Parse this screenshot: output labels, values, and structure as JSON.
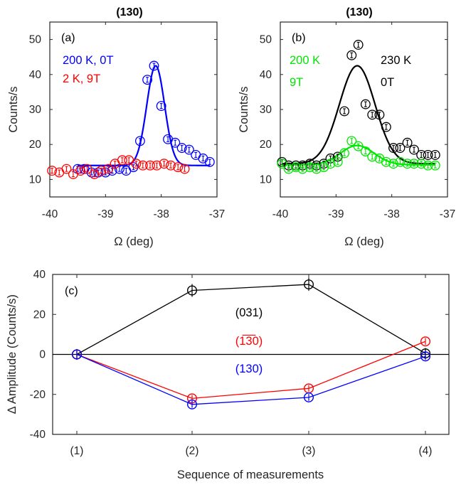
{
  "chart_data": [
    {
      "id": "a",
      "type": "scatter",
      "title": "(130)",
      "panel_label": "(a)",
      "xlabel": "Ω (deg)",
      "ylabel": "Counts/s",
      "xlim": [
        -37,
        -40
      ],
      "ylim": [
        5,
        55
      ],
      "xticks": [
        -40,
        -39,
        -38,
        -37
      ],
      "yticks": [
        10,
        20,
        30,
        40,
        50
      ],
      "legend": [
        {
          "text": "200 K, 0T",
          "color": "#0000ff"
        },
        {
          "text": "2 K, 9T",
          "color": "#ff0000"
        }
      ],
      "series": [
        {
          "name": "200 K, 0T",
          "color": "#0000ff",
          "fit": true,
          "x": [
            -39.5,
            -39.38,
            -39.25,
            -39.13,
            -39.0,
            -38.88,
            -38.75,
            -38.63,
            -38.5,
            -38.38,
            -38.25,
            -38.13,
            -38.0,
            -37.88,
            -37.75,
            -37.63,
            -37.5,
            -37.38,
            -37.25,
            -37.13
          ],
          "y": [
            13,
            13,
            12,
            12,
            12,
            12.5,
            13,
            12.5,
            13.5,
            21,
            38.5,
            42.5,
            31,
            21.5,
            20.5,
            19,
            18.5,
            17,
            16,
            15
          ]
        },
        {
          "name": "2 K, 9T",
          "color": "#ff0000",
          "fit": false,
          "x": [
            -39.96,
            -39.83,
            -39.7,
            -39.58,
            -39.45,
            -39.33,
            -39.2,
            -39.08,
            -38.95,
            -38.83,
            -38.7,
            -38.58,
            -38.45,
            -38.33,
            -38.2,
            -38.08,
            -37.95,
            -37.83,
            -37.7,
            -37.58
          ],
          "y": [
            12.5,
            12,
            13,
            11.5,
            12.5,
            13,
            11.5,
            12.5,
            13,
            14.5,
            15.5,
            15.5,
            14.5,
            14,
            14,
            14,
            14.5,
            14,
            13.5,
            13
          ]
        }
      ],
      "fit_curve": {
        "color": "#0000ff",
        "baseline": 14,
        "amplitude": 28.5,
        "center": -38.1,
        "sigma": 0.16
      }
    },
    {
      "id": "b",
      "type": "scatter",
      "title": "(130)",
      "panel_label": "(b)",
      "xlabel": "Ω (deg)",
      "ylabel": "Counts/s",
      "xlim": [
        -37,
        -40
      ],
      "ylim": [
        5,
        55
      ],
      "xticks": [
        -40,
        -39,
        -38,
        -37
      ],
      "yticks": [
        10,
        20,
        30,
        40,
        50
      ],
      "legend": [
        {
          "text": "200 K",
          "color": "#00e600"
        },
        {
          "text": "9T",
          "color": "#00e600"
        },
        {
          "text": "230 K",
          "color": "#000000"
        },
        {
          "text": "0T",
          "color": "#000000"
        }
      ],
      "series": [
        {
          "name": "230 K, 0T",
          "color": "#000000",
          "fit": true,
          "x": [
            -39.97,
            -39.85,
            -39.72,
            -39.6,
            -39.47,
            -39.35,
            -39.22,
            -39.1,
            -38.97,
            -38.85,
            -38.72,
            -38.6,
            -38.47,
            -38.35,
            -38.22,
            -38.1,
            -37.97,
            -37.85,
            -37.72,
            -37.6,
            -37.47,
            -37.35,
            -37.22
          ],
          "y": [
            15,
            14,
            14,
            14,
            14.5,
            14,
            14.5,
            16,
            16.5,
            29.5,
            45.5,
            48.5,
            31.5,
            28.5,
            28.5,
            25,
            19,
            19,
            20.5,
            18.5,
            17,
            17,
            17
          ]
        },
        {
          "name": "200 K, 9T",
          "color": "#00e600",
          "fit": true,
          "x": [
            -39.97,
            -39.85,
            -39.72,
            -39.6,
            -39.47,
            -39.35,
            -39.22,
            -39.1,
            -38.97,
            -38.85,
            -38.72,
            -38.6,
            -38.47,
            -38.35,
            -38.22,
            -38.1,
            -37.97,
            -37.85,
            -37.72,
            -37.6,
            -37.47,
            -37.35,
            -37.22
          ],
          "y": [
            14.5,
            13,
            13.5,
            13,
            13.5,
            13,
            13.5,
            14.5,
            15,
            17.5,
            21,
            19.5,
            18,
            16.5,
            16,
            15,
            14.5,
            15,
            14.5,
            14.5,
            14.5,
            14,
            14
          ]
        }
      ],
      "fit_curves": [
        {
          "color": "#000000",
          "baseline": 14.5,
          "amplitude": 28,
          "center": -38.62,
          "sigma": 0.32
        },
        {
          "color": "#00e600",
          "baseline": 14.2,
          "amplitude": 5.5,
          "center": -38.62,
          "sigma": 0.3
        }
      ]
    },
    {
      "id": "c",
      "type": "line",
      "panel_label": "(c)",
      "xlabel": "Sequence of measurements",
      "ylabel": "∆ Amplitude (Counts/s)",
      "categories": [
        "(1)",
        "(2)",
        "(3)",
        "(4)"
      ],
      "ylim": [
        -40,
        40
      ],
      "yticks": [
        -40,
        -20,
        0,
        20,
        40
      ],
      "zero_line": true,
      "series": [
        {
          "name": "(031)",
          "color": "#000000",
          "values": [
            0,
            32,
            35,
            0.5
          ],
          "errors": [
            2,
            2.5,
            2.5,
            2
          ]
        },
        {
          "name": "(̅1̅3 0)",
          "label_display": "(1̅3̅0)",
          "color": "#ff0000",
          "values": [
            0,
            -22,
            -17,
            6.5
          ],
          "errors": [
            1,
            1,
            1,
            1
          ]
        },
        {
          "name": "(130)",
          "color": "#0000ff",
          "values": [
            0,
            -25,
            -21.5,
            -1
          ],
          "errors": [
            1,
            1,
            1,
            1
          ]
        }
      ]
    }
  ]
}
